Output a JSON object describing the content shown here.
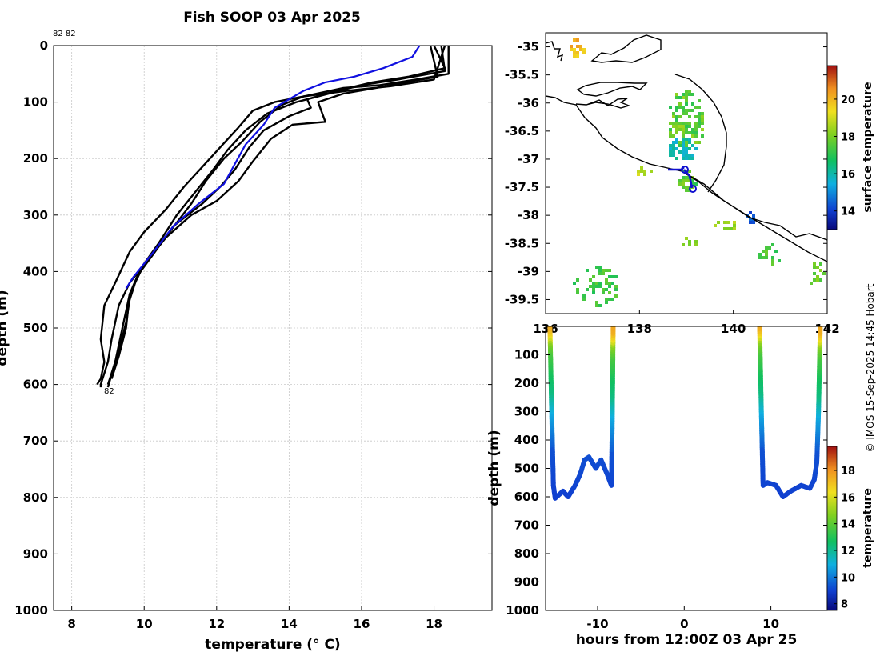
{
  "title": "Fish SOOP 03 Apr 2025",
  "credit": "© IMOS 15-Sep-2025 14:45 Hobart",
  "colors": {
    "profile_black": "#000000",
    "profile_blue": "#1010e0",
    "grid": "#c8c8c8",
    "coast": "#000000"
  },
  "chart_data": [
    {
      "type": "line",
      "name": "temperature-profiles",
      "title": "Fish SOOP 03 Apr 2025",
      "xlabel": "temperature (° C)",
      "ylabel": "depth (m)",
      "xlim": [
        7.5,
        19.6
      ],
      "ylim": [
        1000,
        0
      ],
      "xticks": [
        8,
        10,
        12,
        14,
        16,
        18
      ],
      "yticks": [
        0,
        100,
        200,
        300,
        400,
        500,
        600,
        700,
        800,
        900,
        1000
      ],
      "top_label": "82 82",
      "end_label": "82",
      "series": [
        {
          "name": "profile-1",
          "color": "black",
          "points": [
            [
              18.4,
              0
            ],
            [
              18.4,
              50
            ],
            [
              17.5,
              60
            ],
            [
              16.5,
              70
            ],
            [
              15.5,
              75
            ],
            [
              14.4,
              90
            ],
            [
              13.8,
              105
            ],
            [
              13.2,
              135
            ],
            [
              12.7,
              170
            ],
            [
              12.2,
              200
            ],
            [
              11.7,
              240
            ],
            [
              11.3,
              280
            ],
            [
              10.7,
              330
            ],
            [
              10.2,
              370
            ],
            [
              9.8,
              410
            ],
            [
              9.6,
              450
            ],
            [
              9.5,
              490
            ],
            [
              9.3,
              540
            ],
            [
              9.1,
              580
            ],
            [
              9.0,
              600
            ]
          ]
        },
        {
          "name": "profile-2",
          "color": "black",
          "points": [
            [
              18.2,
              0
            ],
            [
              18.3,
              45
            ],
            [
              17.0,
              60
            ],
            [
              16.0,
              70
            ],
            [
              15.1,
              85
            ],
            [
              14.2,
              100
            ],
            [
              13.4,
              120
            ],
            [
              12.8,
              150
            ],
            [
              12.3,
              185
            ],
            [
              11.9,
              220
            ],
            [
              11.4,
              260
            ],
            [
              10.9,
              300
            ],
            [
              10.4,
              350
            ],
            [
              9.9,
              395
            ],
            [
              9.6,
              440
            ],
            [
              9.4,
              500
            ],
            [
              9.2,
              560
            ],
            [
              9.0,
              605
            ]
          ]
        },
        {
          "name": "profile-3",
          "color": "black",
          "points": [
            [
              18.0,
              0
            ],
            [
              18.3,
              40
            ],
            [
              17.3,
              55
            ],
            [
              16.3,
              65
            ],
            [
              15.3,
              80
            ],
            [
              14.5,
              95
            ],
            [
              14.6,
              110
            ],
            [
              14.0,
              125
            ],
            [
              13.3,
              150
            ],
            [
              12.9,
              180
            ],
            [
              12.5,
              220
            ],
            [
              12.1,
              250
            ],
            [
              11.6,
              280
            ],
            [
              10.8,
              320
            ],
            [
              10.3,
              365
            ],
            [
              9.9,
              400
            ],
            [
              9.6,
              440
            ],
            [
              9.5,
              500
            ],
            [
              9.3,
              550
            ],
            [
              9.1,
              590
            ]
          ]
        },
        {
          "name": "profile-4",
          "color": "black",
          "points": [
            [
              17.9,
              0
            ],
            [
              18.1,
              55
            ],
            [
              17.2,
              65
            ],
            [
              16.4,
              75
            ],
            [
              15.5,
              85
            ],
            [
              14.8,
              100
            ],
            [
              15.0,
              135
            ],
            [
              14.1,
              140
            ],
            [
              13.5,
              165
            ],
            [
              13.0,
              205
            ],
            [
              12.6,
              240
            ],
            [
              12.0,
              275
            ],
            [
              11.3,
              300
            ],
            [
              10.6,
              340
            ],
            [
              10.1,
              380
            ],
            [
              9.6,
              420
            ],
            [
              9.3,
              460
            ],
            [
              9.1,
              520
            ],
            [
              9.0,
              560
            ],
            [
              8.8,
              600
            ],
            [
              8.8,
              605
            ]
          ]
        },
        {
          "name": "profile-5",
          "color": "black",
          "points": [
            [
              18.3,
              0
            ],
            [
              18.0,
              60
            ],
            [
              16.8,
              72
            ],
            [
              15.6,
              80
            ],
            [
              14.4,
              90
            ],
            [
              13.6,
              100
            ],
            [
              13.0,
              115
            ],
            [
              12.6,
              145
            ],
            [
              12.1,
              180
            ],
            [
              11.6,
              215
            ],
            [
              11.1,
              250
            ],
            [
              10.6,
              290
            ],
            [
              10.0,
              330
            ],
            [
              9.6,
              365
            ],
            [
              9.2,
              420
            ],
            [
              8.9,
              460
            ],
            [
              8.8,
              520
            ],
            [
              8.9,
              560
            ],
            [
              8.8,
              590
            ],
            [
              8.7,
              600
            ]
          ]
        },
        {
          "name": "profile-ship",
          "color": "blue",
          "points": [
            [
              17.6,
              0
            ],
            [
              17.4,
              20
            ],
            [
              16.6,
              40
            ],
            [
              15.8,
              55
            ],
            [
              15.0,
              65
            ],
            [
              14.4,
              80
            ],
            [
              14.0,
              95
            ],
            [
              13.6,
              110
            ],
            [
              13.3,
              140
            ],
            [
              12.8,
              175
            ],
            [
              12.5,
              210
            ],
            [
              12.2,
              245
            ],
            [
              11.5,
              280
            ],
            [
              10.8,
              320
            ],
            [
              10.2,
              370
            ],
            [
              9.7,
              410
            ],
            [
              9.5,
              430
            ]
          ]
        }
      ]
    },
    {
      "type": "heatmap",
      "name": "surface-temperature-map",
      "xlabel": "",
      "ylabel": "",
      "xlim": [
        136,
        142
      ],
      "ylim": [
        -39.75,
        -34.75
      ],
      "xticks": [
        "136",
        "138",
        "140",
        "142"
      ],
      "yticks": [
        -35,
        -35.5,
        -36,
        -36.5,
        -37,
        -37.5,
        -38,
        -38.5,
        -39,
        -39.5
      ],
      "colorbar": {
        "label": "surface temperature",
        "range": [
          13,
          21.8
        ],
        "ticks": [
          14,
          16,
          18,
          20
        ]
      },
      "vessel_track": {
        "start": [
          139.0,
          -37.2
        ],
        "end": [
          139.1,
          -37.5
        ]
      }
    },
    {
      "type": "scatter",
      "name": "depth-time-section",
      "xlabel": "hours from 12:00Z 03 Apr 25",
      "ylabel": "depth (m)",
      "xlim": [
        -16,
        16.5
      ],
      "ylim": [
        1000,
        0
      ],
      "xticks": [
        -10,
        0,
        10
      ],
      "yticks": [
        100,
        200,
        300,
        400,
        500,
        600,
        700,
        800,
        900,
        1000
      ],
      "colorbar": {
        "label": "temperature",
        "range": [
          7.5,
          19.8
        ],
        "ticks": [
          8,
          10,
          12,
          14,
          16,
          18
        ]
      },
      "casts": [
        {
          "down": [
            [
              -15.5,
              0
            ],
            [
              -15.3,
              300
            ],
            [
              -15.1,
              560
            ],
            [
              -14.9,
              605
            ],
            [
              -14.0,
              580
            ],
            [
              -13.4,
              600
            ],
            [
              -12.6,
              560
            ],
            [
              -12.0,
              520
            ],
            [
              -11.5,
              470
            ],
            [
              -11.0,
              460
            ],
            [
              -10.2,
              500
            ],
            [
              -9.6,
              470
            ],
            [
              -8.9,
              520
            ],
            [
              -8.4,
              560
            ],
            [
              -8.3,
              300
            ],
            [
              -8.2,
              0
            ]
          ]
        },
        {
          "down": [
            [
              8.7,
              0
            ],
            [
              8.9,
              300
            ],
            [
              9.1,
              560
            ],
            [
              9.6,
              550
            ],
            [
              10.6,
              560
            ],
            [
              11.4,
              600
            ],
            [
              12.3,
              580
            ],
            [
              13.5,
              560
            ],
            [
              14.5,
              570
            ],
            [
              15.0,
              540
            ],
            [
              15.3,
              480
            ],
            [
              15.5,
              300
            ],
            [
              15.7,
              0
            ]
          ]
        }
      ]
    }
  ]
}
